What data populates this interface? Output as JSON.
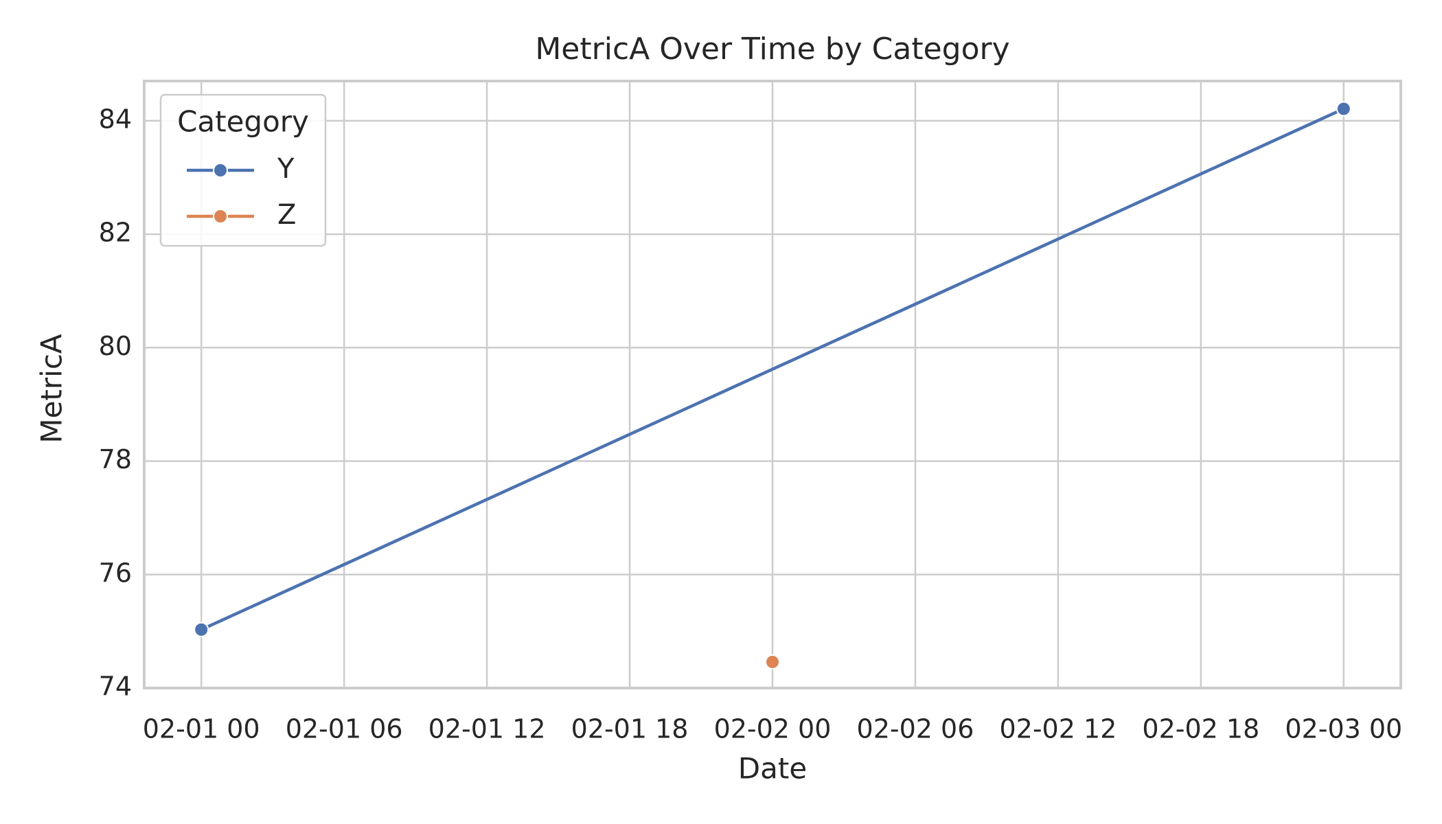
{
  "chart_data": {
    "type": "line",
    "title": "MetricA Over Time by Category",
    "x_label": "Date",
    "y_label": "MetricA",
    "xlim": [
      "01-31 21:36",
      "02-03 02:24"
    ],
    "xticks": [
      "02-01 00",
      "02-01 06",
      "02-01 12",
      "02-01 18",
      "02-02 00",
      "02-02 06",
      "02-02 12",
      "02-02 18",
      "02-03 00"
    ],
    "ylim": [
      74,
      84.7
    ],
    "yticks": [
      74,
      76,
      78,
      80,
      82,
      84
    ],
    "grid": true,
    "legend_title": "Category",
    "legend_position": "upper-left",
    "series": [
      {
        "name": "Y",
        "color": "#4c72b0",
        "x": [
          "02-01 00",
          "02-03 00"
        ],
        "values": [
          75.03,
          84.21
        ]
      },
      {
        "name": "Z",
        "color": "#dd8452",
        "x": [
          "02-02 00"
        ],
        "values": [
          74.46
        ]
      }
    ]
  }
}
